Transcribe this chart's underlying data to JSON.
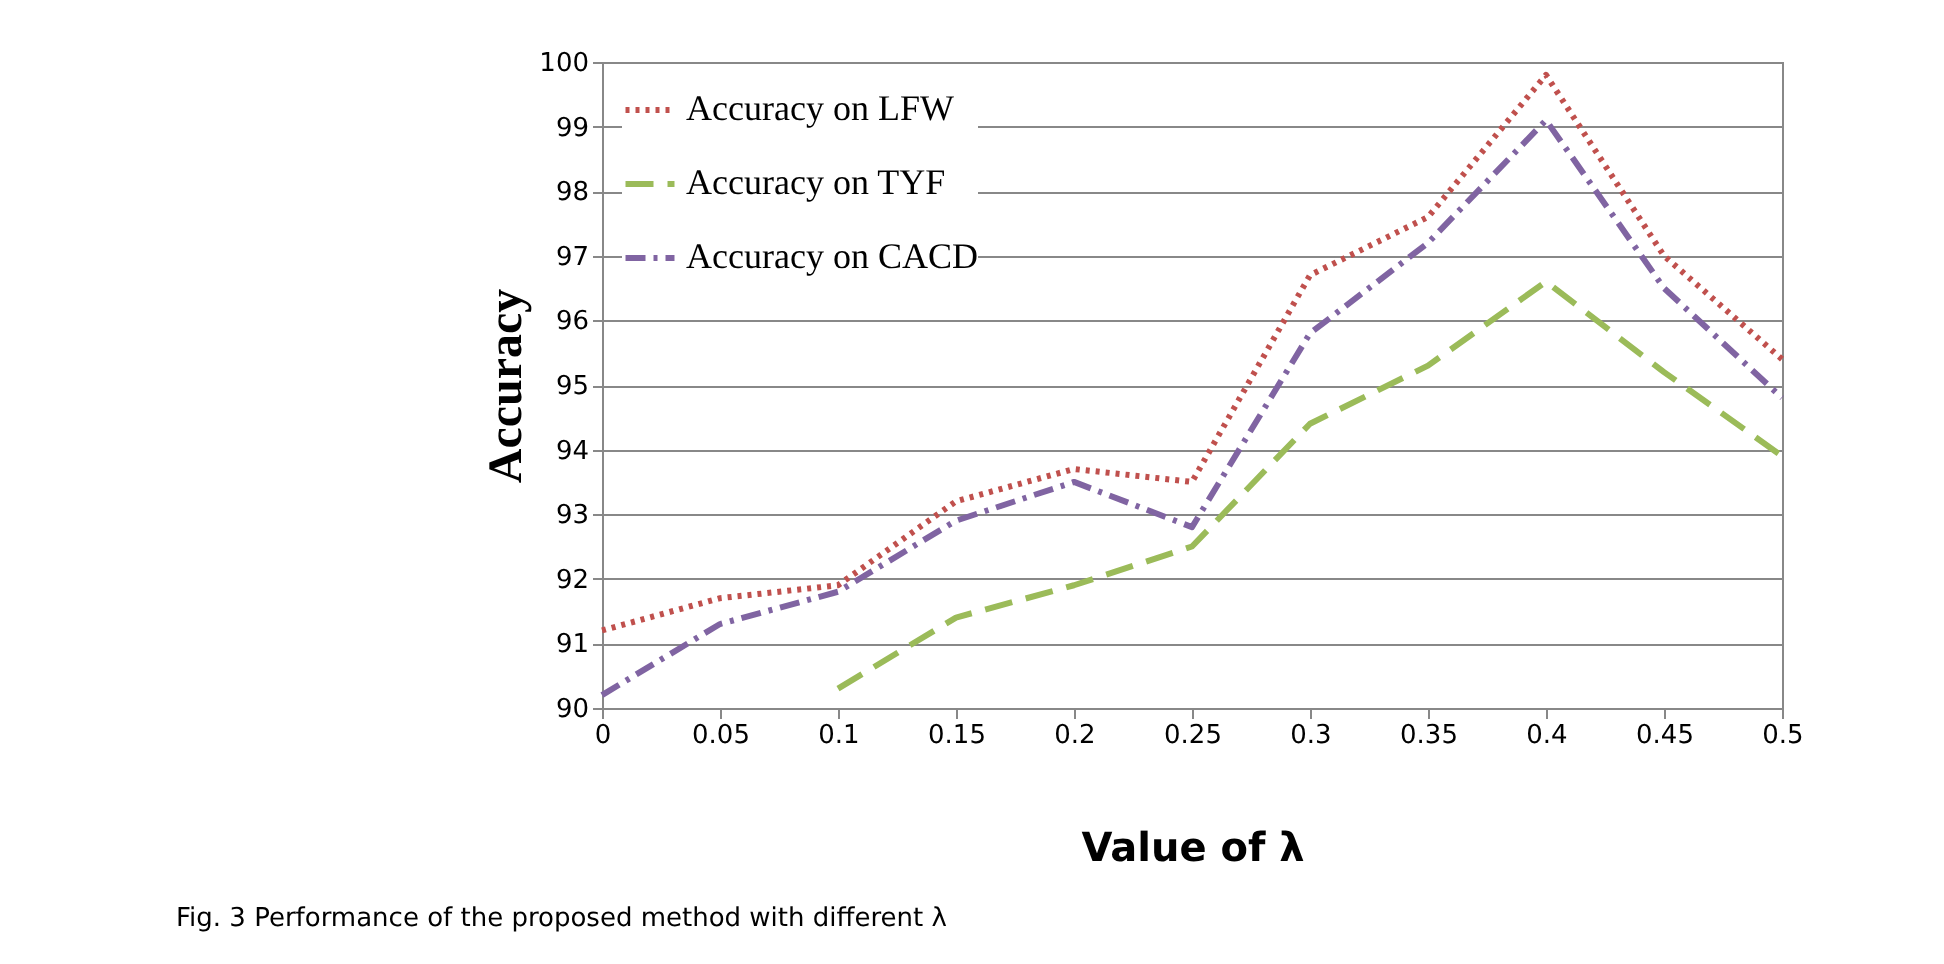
{
  "chart_data": {
    "type": "line",
    "xlabel": "Value of  λ",
    "ylabel": "Accuracy",
    "annotations": [
      "Fig. 3 Performance of the proposed method with different λ"
    ],
    "x": [
      0,
      0.05,
      0.1,
      0.15,
      0.2,
      0.25,
      0.3,
      0.35,
      0.4,
      0.45,
      0.5
    ],
    "xlim": [
      0,
      0.5
    ],
    "xticks": [
      0,
      0.05,
      0.1,
      0.15,
      0.2,
      0.25,
      0.3,
      0.35,
      0.4,
      0.45,
      0.5
    ],
    "ylim": [
      90,
      100
    ],
    "yticks": [
      90,
      91,
      92,
      93,
      94,
      95,
      96,
      97,
      98,
      99,
      100
    ],
    "grid": "y",
    "legend": "top left",
    "marker": "none",
    "series": [
      {
        "name": "Accuracy on LFW",
        "color": "#c0504d",
        "line_style": "dotted",
        "values": [
          91.2,
          91.7,
          91.9,
          93.2,
          93.7,
          93.5,
          96.7,
          97.6,
          99.8,
          97.0,
          95.4
        ]
      },
      {
        "name": "Accuracy on TYF",
        "color": "#9bbb59",
        "line_style": "dashed",
        "values": [
          null,
          null,
          90.3,
          91.4,
          91.9,
          92.5,
          94.4,
          95.3,
          96.6,
          95.2,
          93.9
        ]
      },
      {
        "name": "Accuracy on CACD",
        "color": "#8064a2",
        "line_style": "dashdot",
        "values": [
          90.2,
          91.3,
          91.8,
          92.9,
          93.5,
          92.8,
          95.8,
          97.2,
          99.1,
          96.5,
          94.8
        ]
      }
    ]
  }
}
